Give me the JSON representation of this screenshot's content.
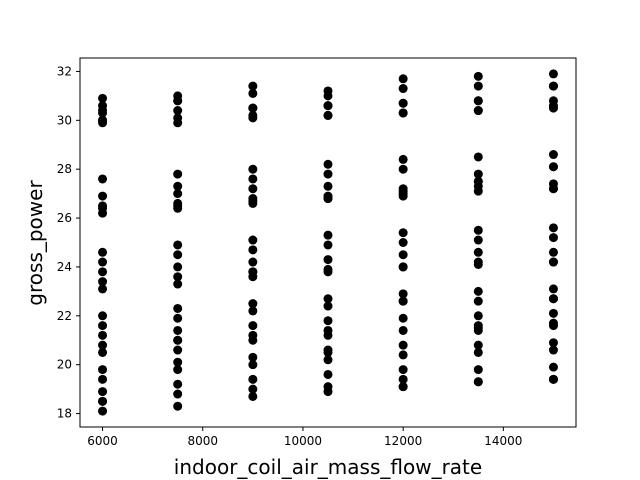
{
  "chart_data": {
    "type": "scatter",
    "title": "",
    "xlabel": "indoor_coil_air_mass_flow_rate",
    "ylabel": "gross_power",
    "xlim": [
      5550,
      15450
    ],
    "ylim": [
      17.45,
      32.55
    ],
    "xticks": [
      6000,
      8000,
      10000,
      12000,
      14000
    ],
    "yticks": [
      18,
      20,
      22,
      24,
      26,
      28,
      30,
      32
    ],
    "grid": false,
    "marker_color": "#000000",
    "series": [
      {
        "x": [
          6000,
          6000,
          6000,
          6000,
          6000,
          6000,
          6000,
          6000,
          6000,
          6000,
          6000,
          6000,
          6000,
          6000,
          6000,
          6000,
          6000,
          6000,
          6000,
          6000,
          6000,
          6000,
          6000,
          6000,
          6000,
          6000,
          6000,
          6000,
          7500,
          7500,
          7500,
          7500,
          7500,
          7500,
          7500,
          7500,
          7500,
          7500,
          7500,
          7500,
          7500,
          7500,
          7500,
          7500,
          7500,
          7500,
          7500,
          7500,
          7500,
          7500,
          7500,
          7500,
          7500,
          7500,
          7500,
          7500,
          9000,
          9000,
          9000,
          9000,
          9000,
          9000,
          9000,
          9000,
          9000,
          9000,
          9000,
          9000,
          9000,
          9000,
          9000,
          9000,
          9000,
          9000,
          9000,
          9000,
          9000,
          9000,
          9000,
          9000,
          9000,
          9000,
          9000,
          9000,
          10500,
          10500,
          10500,
          10500,
          10500,
          10500,
          10500,
          10500,
          10500,
          10500,
          10500,
          10500,
          10500,
          10500,
          10500,
          10500,
          10500,
          10500,
          10500,
          10500,
          10500,
          10500,
          10500,
          10500,
          10500,
          10500,
          10500,
          10500,
          12000,
          12000,
          12000,
          12000,
          12000,
          12000,
          12000,
          12000,
          12000,
          12000,
          12000,
          12000,
          12000,
          12000,
          12000,
          12000,
          12000,
          12000,
          12000,
          12000,
          12000,
          12000,
          12000,
          12000,
          12000,
          12000,
          12000,
          12000,
          13500,
          13500,
          13500,
          13500,
          13500,
          13500,
          13500,
          13500,
          13500,
          13500,
          13500,
          13500,
          13500,
          13500,
          13500,
          13500,
          13500,
          13500,
          13500,
          13500,
          13500,
          13500,
          13500,
          13500,
          13500,
          13500,
          13500,
          13500,
          15000,
          15000,
          15000,
          15000,
          15000,
          15000,
          15000,
          15000,
          15000,
          15000,
          15000,
          15000,
          15000,
          15000,
          15000,
          15000,
          15000,
          15000,
          15000,
          15000,
          15000,
          15000,
          15000,
          15000,
          15000,
          15000,
          15000,
          15000
        ],
        "y": [
          30.9,
          30.6,
          30.3,
          30.0,
          29.9,
          27.6,
          26.9,
          26.5,
          26.4,
          26.2,
          24.6,
          24.2,
          23.8,
          23.4,
          23.1,
          22.0,
          21.6,
          21.2,
          20.8,
          20.5,
          19.8,
          19.4,
          18.9,
          18.5,
          18.1,
          18.5,
          30.4,
          30.0,
          31.0,
          30.8,
          30.4,
          30.1,
          29.9,
          27.8,
          27.3,
          27.0,
          26.6,
          26.4,
          24.9,
          24.5,
          24.0,
          23.6,
          23.3,
          22.3,
          21.9,
          21.4,
          21.0,
          20.6,
          20.1,
          19.8,
          19.2,
          18.8,
          18.3,
          30.8,
          26.5,
          21.0,
          31.4,
          31.1,
          30.5,
          30.2,
          30.1,
          28.0,
          27.6,
          27.2,
          26.8,
          26.6,
          25.1,
          24.7,
          24.2,
          23.8,
          23.6,
          22.5,
          22.2,
          21.6,
          21.2,
          21.0,
          20.3,
          20.0,
          19.4,
          19.0,
          18.7,
          30.5,
          26.7,
          23.8,
          31.2,
          31.0,
          30.6,
          30.2,
          30.2,
          28.2,
          27.8,
          27.3,
          26.9,
          26.8,
          25.3,
          24.9,
          24.3,
          23.9,
          23.8,
          22.7,
          22.4,
          21.8,
          21.4,
          21.2,
          20.6,
          20.2,
          19.6,
          19.1,
          18.9,
          30.6,
          26.8,
          20.5,
          31.7,
          31.3,
          30.7,
          30.3,
          30.3,
          28.4,
          28.0,
          27.2,
          27.0,
          26.9,
          25.4,
          25.0,
          24.5,
          24.0,
          24.0,
          22.9,
          22.6,
          21.9,
          21.4,
          20.8,
          20.4,
          19.8,
          19.4,
          19.1,
          19.1,
          30.7,
          27.1,
          22.6,
          31.8,
          31.4,
          30.8,
          30.4,
          30.4,
          28.5,
          27.8,
          27.5,
          27.3,
          27.1,
          25.5,
          25.1,
          24.6,
          24.2,
          24.1,
          23.0,
          22.6,
          22.0,
          21.6,
          21.4,
          20.8,
          20.5,
          19.8,
          19.3,
          19.3,
          30.8,
          27.5,
          21.5,
          31.9,
          31.4,
          30.8,
          30.5,
          30.6,
          28.6,
          28.1,
          27.4,
          27.2,
          27.2,
          25.6,
          25.2,
          24.6,
          24.2,
          24.2,
          23.1,
          22.7,
          22.1,
          21.7,
          21.6,
          20.9,
          20.6,
          19.9,
          19.4,
          19.4,
          31.4,
          28.1,
          22.7
        ]
      }
    ]
  }
}
